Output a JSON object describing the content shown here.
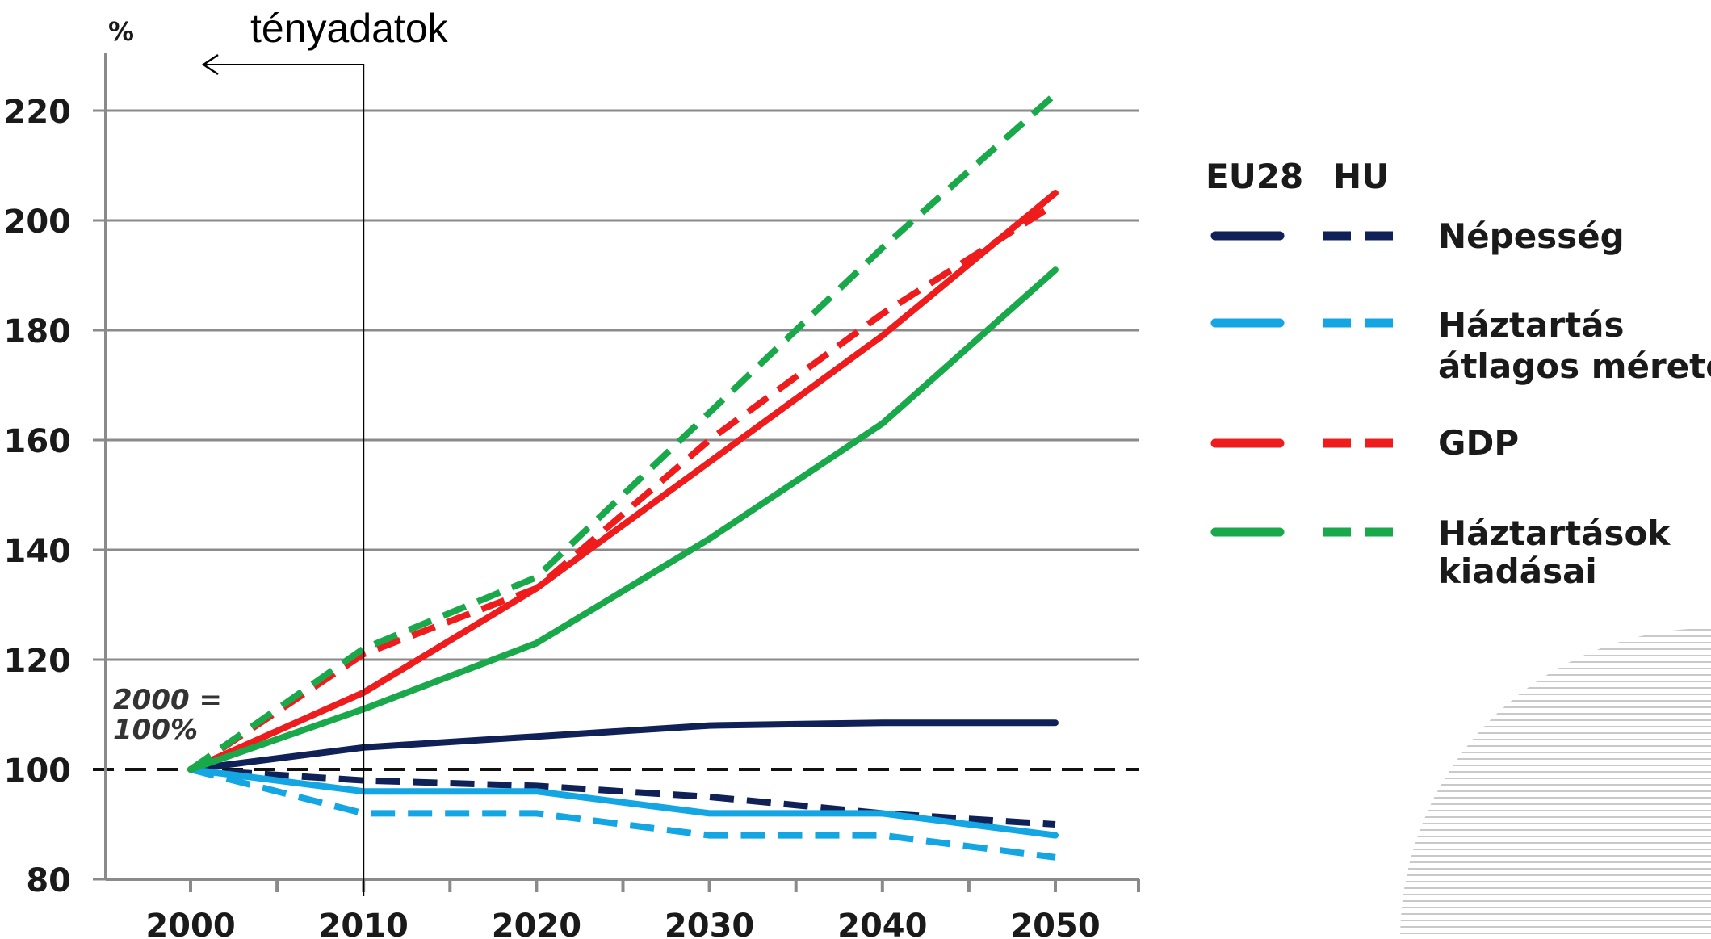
{
  "chart_data": {
    "type": "line",
    "ylabel": "%",
    "ylim": [
      80,
      225
    ],
    "x_ticks": [
      2000,
      2010,
      2020,
      2030,
      2040,
      2050
    ],
    "y_ticks": [
      80,
      100,
      120,
      140,
      160,
      180,
      200,
      220
    ],
    "x": [
      2000,
      2010,
      2020,
      2030,
      2040,
      2050
    ],
    "legend_headers": [
      "EU28",
      "HU"
    ],
    "groups": [
      {
        "name": "Népesség",
        "color": "#0f2157",
        "eu28": [
          100,
          104,
          106,
          108,
          108.5,
          108.5
        ],
        "hu": [
          100,
          98,
          97,
          95,
          92,
          90
        ]
      },
      {
        "name": "Háztartás átlagos mérete",
        "name_lines": [
          "Háztartás",
          "átlagos mérete"
        ],
        "color": "#14a5e3",
        "eu28": [
          100,
          96,
          96,
          92,
          92,
          88
        ],
        "hu": [
          100,
          92,
          92,
          88,
          88,
          84
        ]
      },
      {
        "name": "GDP",
        "name_lines": [
          "GDP"
        ],
        "color": "#ee1c1c",
        "eu28": [
          100,
          114,
          133,
          156,
          179,
          205
        ],
        "hu": [
          100,
          121,
          133,
          160,
          183,
          203
        ]
      },
      {
        "name": "Háztartások kiadásai",
        "name_lines": [
          "Háztartások",
          "kiadásai"
        ],
        "color": "#19a84a",
        "eu28": [
          100,
          111,
          123,
          142,
          163,
          191
        ],
        "hu": [
          100,
          122,
          135,
          165,
          195,
          223
        ]
      }
    ],
    "baseline_value": 100,
    "annotations": {
      "base_line1": "2000 =",
      "base_line2": "100%",
      "actual_data": "tényadatok",
      "actual_data_year": 2010
    },
    "grid": true,
    "legend_position": "right"
  }
}
